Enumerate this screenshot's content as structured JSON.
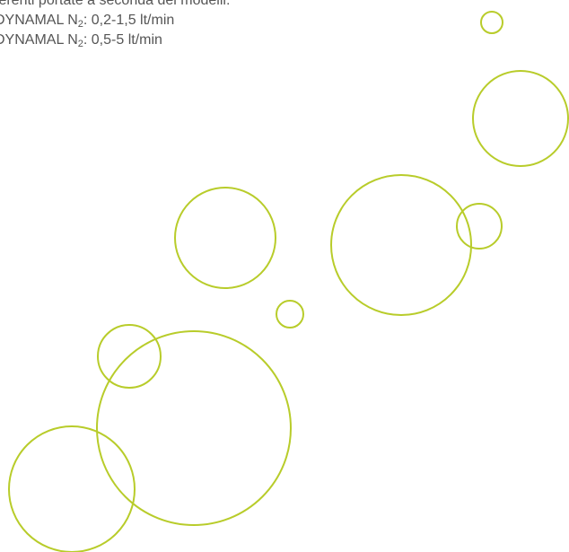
{
  "text": {
    "line0": "ferenti portate a seconda dei modelli:",
    "line1_prefix": "DYNAMAL N",
    "line1_sub": "2",
    "line1_suffix": ": 0,2-1,5 lt/min",
    "line2_prefix": "DYNAMAL N",
    "line2_sub": "2",
    "line2_suffix": ": 0,5-5 lt/min"
  },
  "colors": {
    "text": "#555555",
    "bubble_stroke": "#b8cc2a"
  }
}
